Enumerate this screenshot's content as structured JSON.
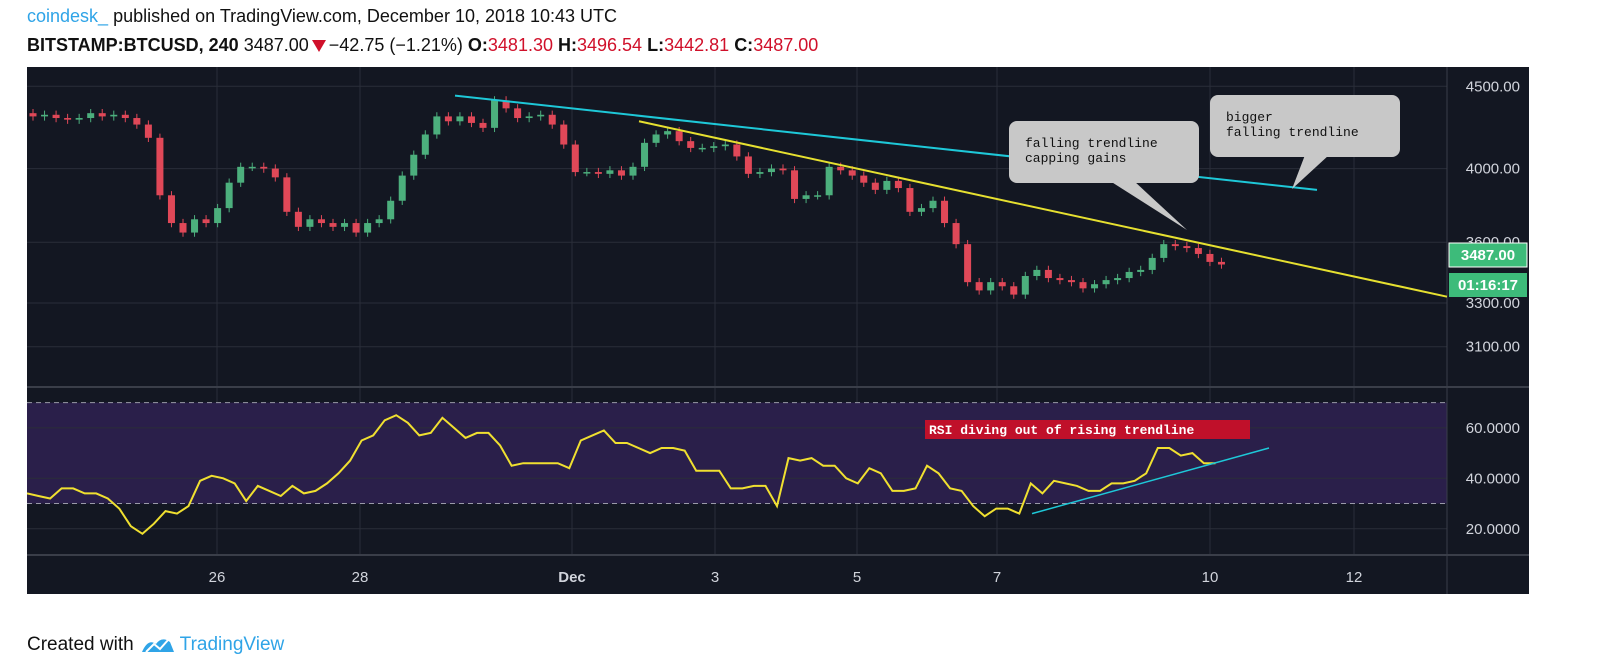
{
  "header": {
    "author": "coindesk_",
    "published": "published on TradingView.com, December 10, 2018 10:43 UTC",
    "symbol": "BITSTAMP:BTCUSD, 240",
    "last": "3487.00",
    "change": "−42.75 (−1.21%)",
    "o_label": "O:",
    "o": "3481.30",
    "h_label": "H:",
    "h": "3496.54",
    "l_label": "L:",
    "l": "3442.81",
    "c_label": "C:",
    "c": "3487.00"
  },
  "footer": {
    "created": "Created with",
    "brand": "TradingView"
  },
  "colors": {
    "background": "#131722",
    "up": "#4caf7d",
    "down": "#e04858",
    "rsi_line": "#f0e030",
    "cyan_trend": "#1ec8d8",
    "yellow_trend": "#e6e030",
    "rsi_band": "#2a1f4a",
    "price_tag": "#3dbb7a"
  },
  "chart_data": [
    {
      "type": "candlestick",
      "title": "BITSTAMP:BTCUSD, 240",
      "y_ticks": [
        "4500.00",
        "4000.00",
        "3600.00",
        "3300.00",
        "3100.00"
      ],
      "y_tick_values": [
        4500,
        4000,
        3600,
        3300,
        3100
      ],
      "x_ticks": [
        "26",
        "28",
        "Dec",
        "3",
        "5",
        "7",
        "10",
        "12"
      ],
      "last_price_tag": "3487.00",
      "countdown_tag": "01:16:17",
      "annotations": [
        {
          "text": "falling trendline\ncapping gains"
        },
        {
          "text": "bigger\nfalling trendline"
        }
      ],
      "candles_close": [
        4310,
        4320,
        4300,
        4290,
        4300,
        4330,
        4310,
        4320,
        4300,
        4260,
        4180,
        3850,
        3700,
        3650,
        3720,
        3700,
        3780,
        3920,
        4010,
        4010,
        4000,
        3950,
        3760,
        3680,
        3720,
        3700,
        3680,
        3700,
        3650,
        3700,
        3720,
        3820,
        3960,
        4080,
        4200,
        4310,
        4280,
        4310,
        4270,
        4240,
        4410,
        4360,
        4300,
        4310,
        4320,
        4260,
        4140,
        3980,
        3980,
        3970,
        3990,
        3960,
        4010,
        4150,
        4200,
        4220,
        4160,
        4120,
        4120,
        4130,
        4140,
        4070,
        3970,
        3980,
        4000,
        3990,
        3830,
        3850,
        3850,
        4010,
        3990,
        3960,
        3920,
        3880,
        3930,
        3890,
        3760,
        3780,
        3820,
        3700,
        3590,
        3400,
        3360,
        3400,
        3380,
        3340,
        3430,
        3460,
        3420,
        3410,
        3400,
        3370,
        3390,
        3410,
        3420,
        3450,
        3460,
        3520,
        3590,
        3580,
        3570,
        3540,
        3500,
        3487
      ],
      "trendlines": [
        {
          "name": "bigger falling trendline",
          "from_price": 4440,
          "to_price": 3880
        },
        {
          "name": "falling trendline",
          "from_price": 4280,
          "to_price": 3330
        }
      ]
    },
    {
      "type": "line",
      "title": "RSI",
      "y_ticks": [
        "60.0000",
        "40.0000",
        "20.0000"
      ],
      "y_tick_values": [
        60,
        40,
        20
      ],
      "band": [
        70,
        30
      ],
      "annotation": "RSI diving out of rising trendline",
      "values": [
        34,
        33,
        32,
        36,
        36,
        34,
        34,
        32,
        28,
        21,
        18,
        22,
        27,
        26,
        29,
        39,
        41,
        40,
        38,
        31,
        37,
        35,
        33,
        37,
        34,
        35,
        38,
        42,
        47,
        55,
        57,
        63,
        65,
        62,
        57,
        58,
        64,
        60,
        56,
        58,
        58,
        53,
        45,
        46,
        46,
        46,
        46,
        44,
        55,
        57,
        59,
        54,
        54,
        52,
        50,
        52,
        52,
        51,
        43,
        43,
        43,
        36,
        36,
        37,
        37,
        29,
        48,
        47,
        48,
        45,
        45,
        40,
        38,
        44,
        42,
        35,
        35,
        36,
        45,
        42,
        36,
        35,
        29,
        25,
        28,
        28,
        26,
        38,
        34,
        39,
        38,
        37,
        35,
        35,
        38,
        38,
        39,
        42,
        52,
        52,
        49,
        50,
        46,
        46
      ],
      "trendline": {
        "name": "rising trendline",
        "from_value": 26,
        "to_value": 52
      }
    }
  ]
}
